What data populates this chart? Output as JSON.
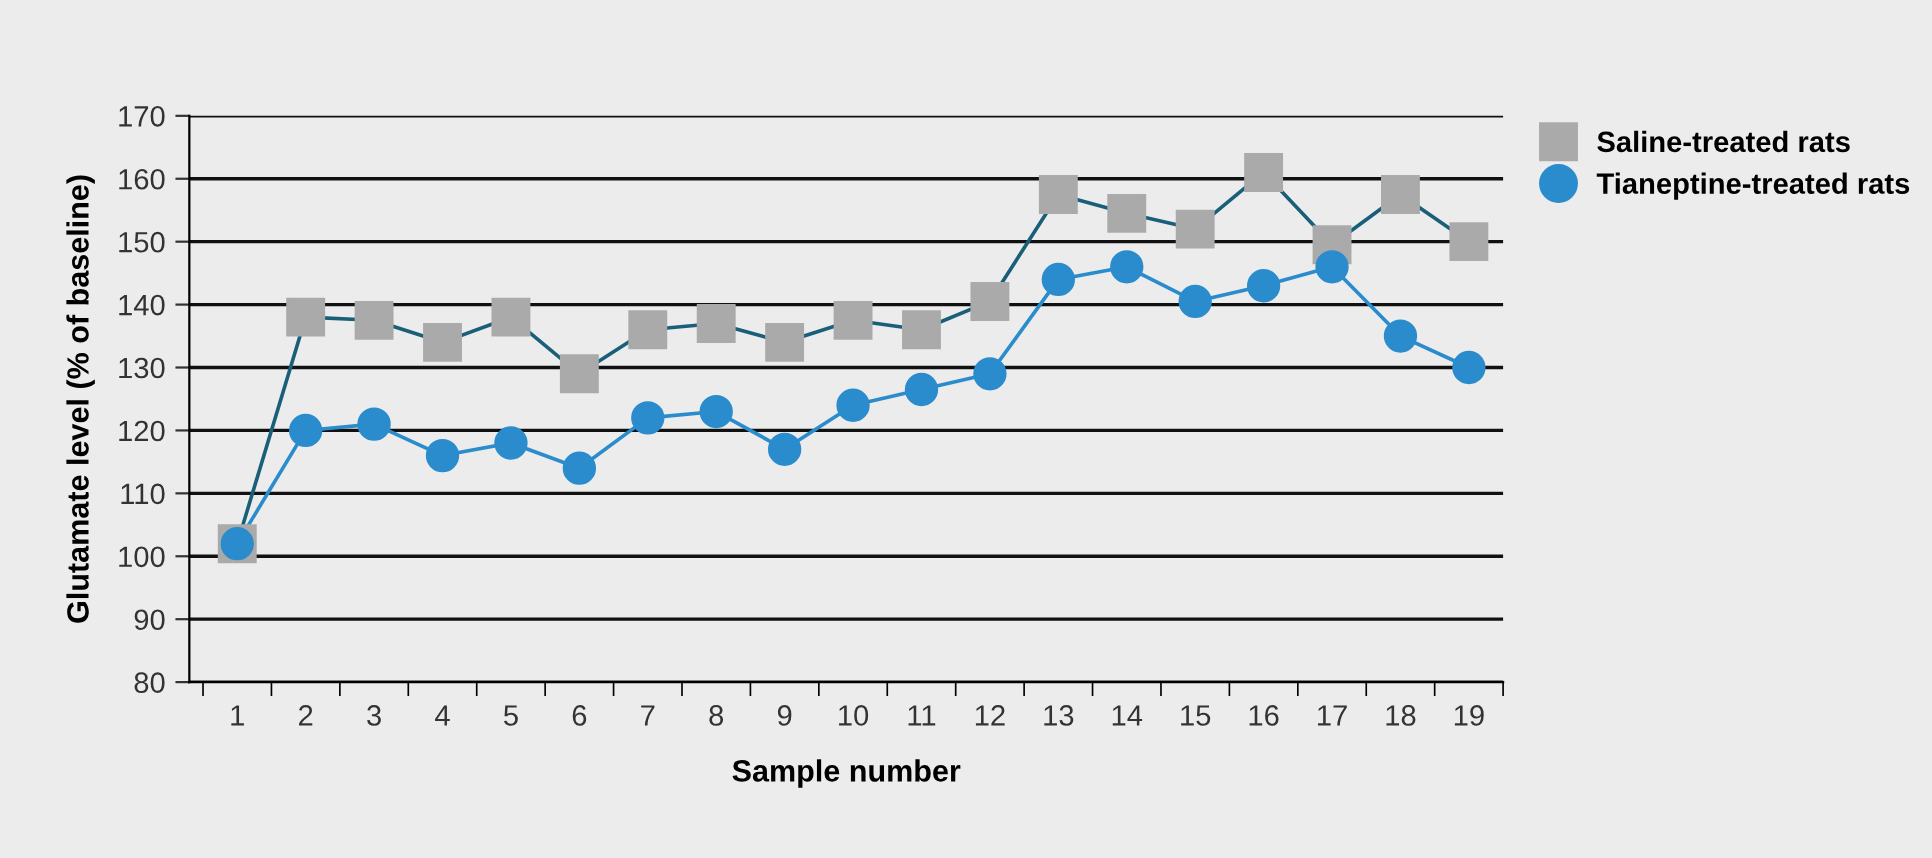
{
  "chart_data": {
    "type": "line",
    "xlabel": "Sample number",
    "ylabel": "Glutamate level (% of baseline)",
    "categories": [
      "1",
      "2",
      "3",
      "4",
      "5",
      "6",
      "7",
      "8",
      "9",
      "10",
      "11",
      "12",
      "13",
      "14",
      "15",
      "16",
      "17",
      "18",
      "19"
    ],
    "series": [
      {
        "name": "Saline-treated rats",
        "color": "#aaaaaa",
        "marker": "square",
        "values": [
          102,
          138,
          137.5,
          134,
          138,
          129,
          136,
          137,
          134,
          137.5,
          136,
          140.5,
          157.5,
          154.5,
          152,
          161,
          149.5,
          157.5,
          150
        ]
      },
      {
        "name": "Tianeptine-treated rats",
        "color": "#2a8ccc",
        "marker": "circle",
        "values": [
          102,
          120,
          121,
          116,
          118,
          114,
          122,
          123,
          117,
          124,
          126.5,
          129,
          144,
          146,
          140.5,
          143,
          146,
          135,
          130
        ]
      }
    ],
    "ylim": [
      80,
      170
    ],
    "yticks": [
      80,
      90,
      100,
      110,
      120,
      130,
      140,
      150,
      160,
      170
    ],
    "grid": "y",
    "legend": "top right",
    "line_style": "solid"
  }
}
